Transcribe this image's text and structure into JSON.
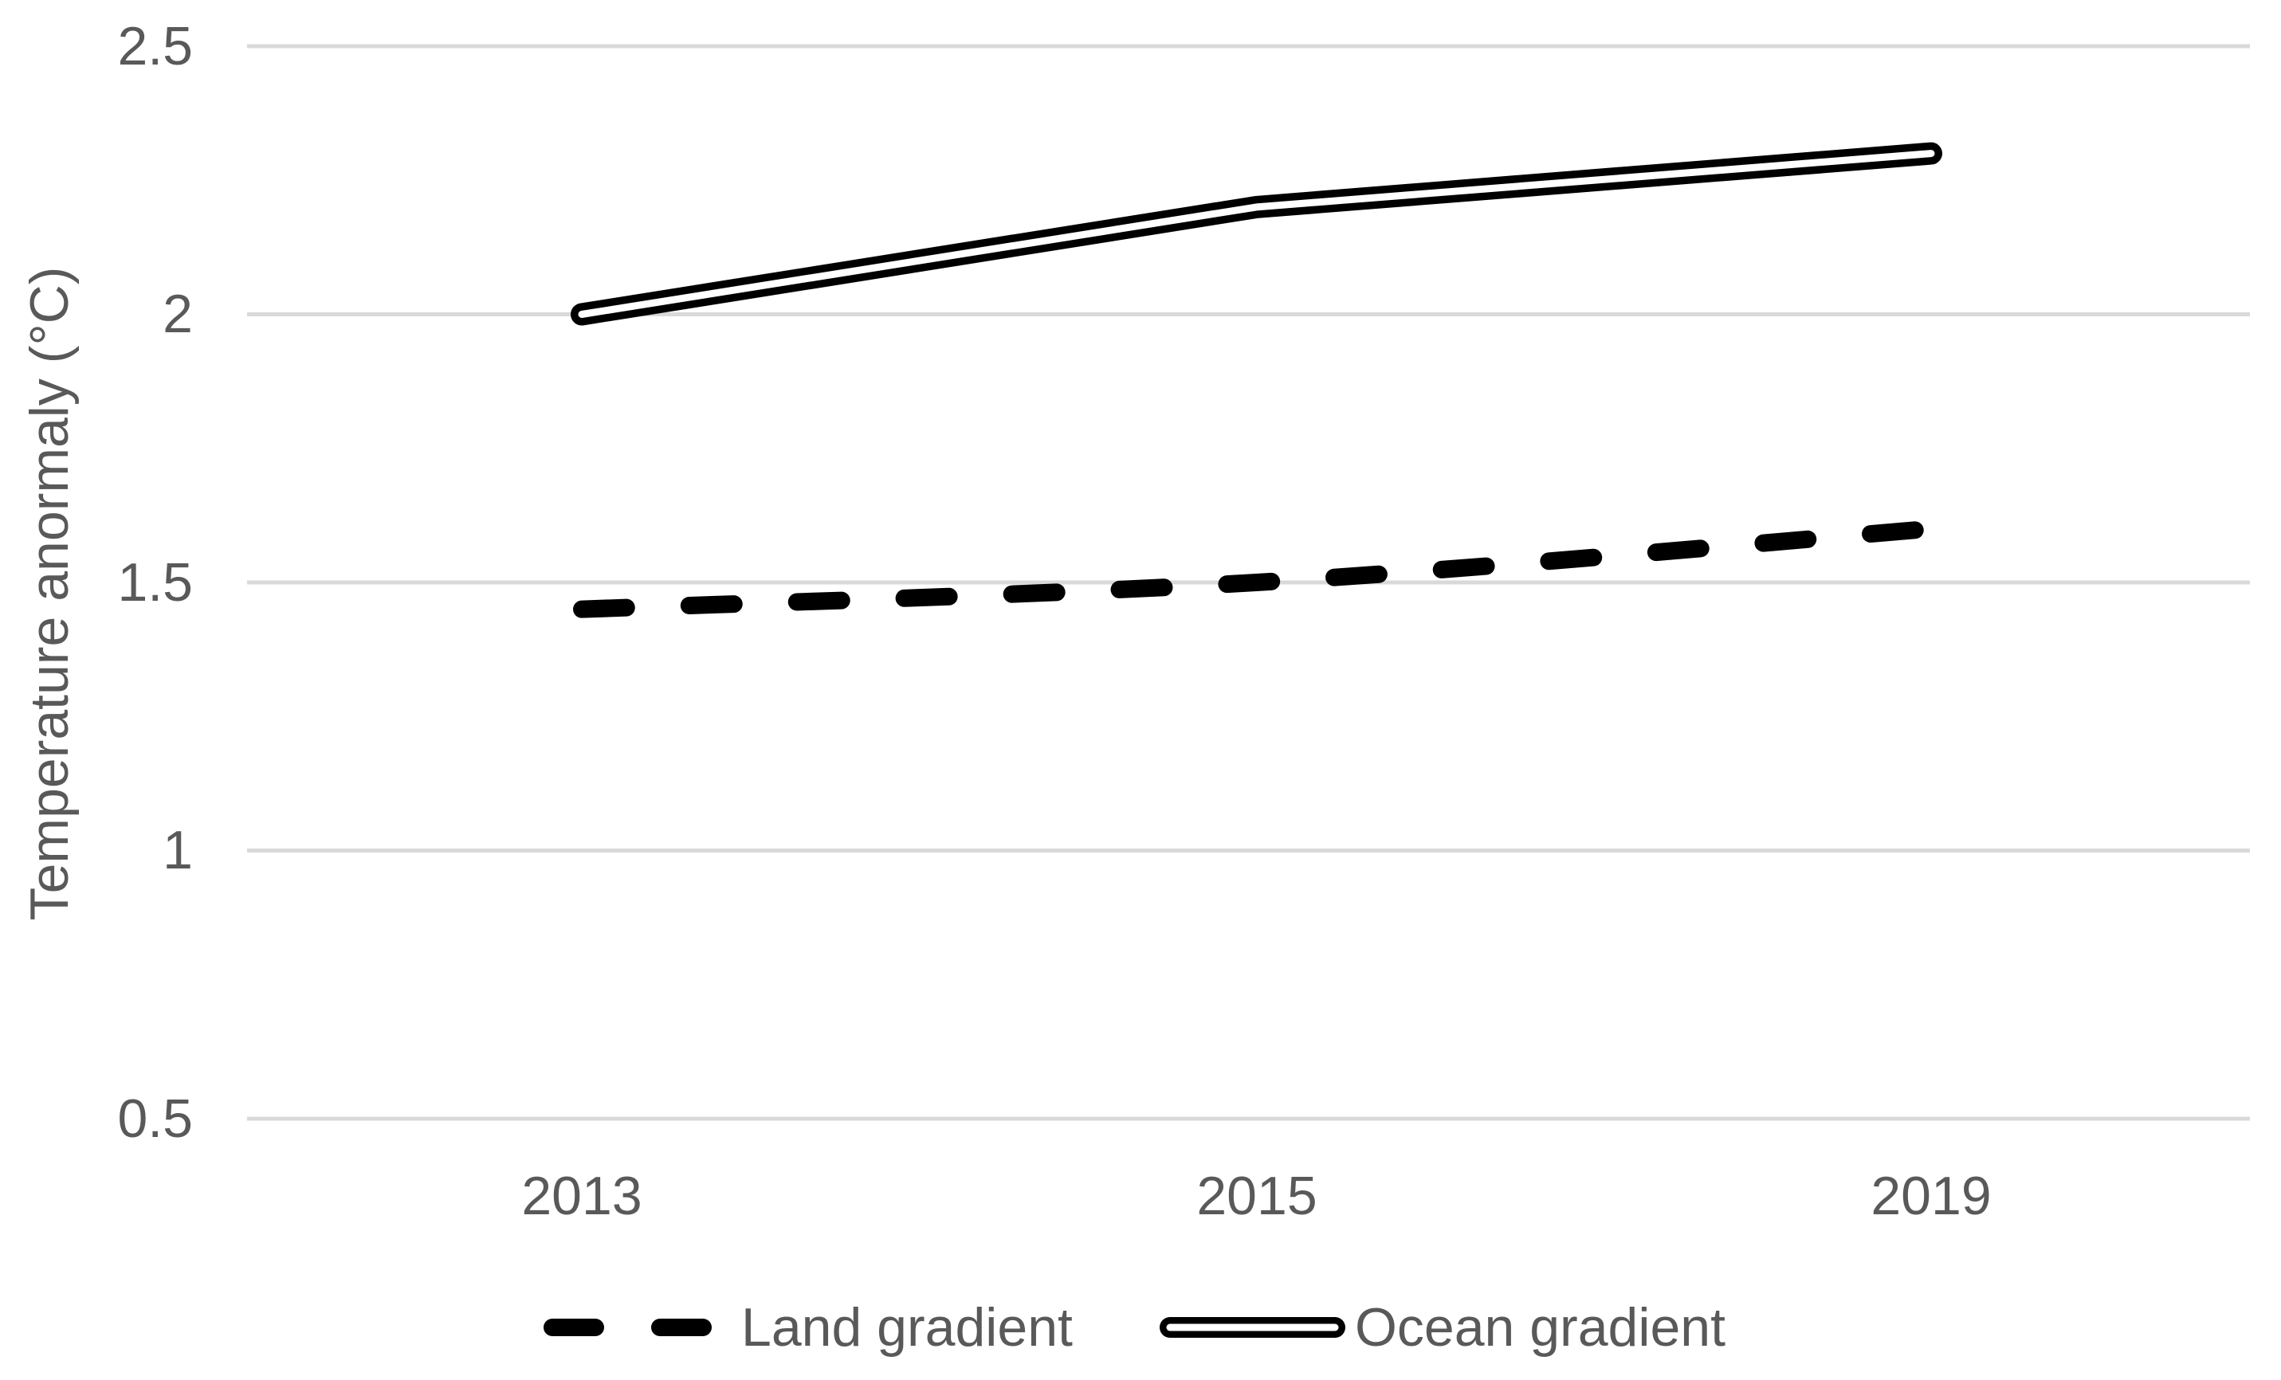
{
  "chart_data": {
    "type": "line",
    "title": "",
    "categories": [
      "2013",
      "2015",
      "2019"
    ],
    "series": [
      {
        "name": "Land gradient",
        "values": [
          1.45,
          1.5,
          1.6
        ],
        "color": "#000000",
        "line_style": "thick-dashed",
        "smooth": true
      },
      {
        "name": "Ocean gradient",
        "values": [
          2.0,
          2.2,
          2.3
        ],
        "color": "#000000",
        "line_style": "outlined-tube",
        "smooth": false
      }
    ],
    "xlabel": "",
    "ylabel": "Temperature anormaly (°C)",
    "ylim": [
      0.5,
      2.5
    ],
    "ytick_labels": [
      "2.5",
      "2",
      "1.5",
      "1",
      "0.5"
    ],
    "ytick_interval": 0.5,
    "grid": "horizontal-only",
    "gridline_color": "#d9d9d9",
    "text_color": "#595959",
    "background": "#ffffff",
    "legend_position": "bottom-center"
  },
  "legend": {
    "items": [
      {
        "label": "Land gradient",
        "marker": "thick-dashed-line-icon"
      },
      {
        "label": "Ocean gradient",
        "marker": "outlined-tube-line-icon"
      }
    ]
  }
}
